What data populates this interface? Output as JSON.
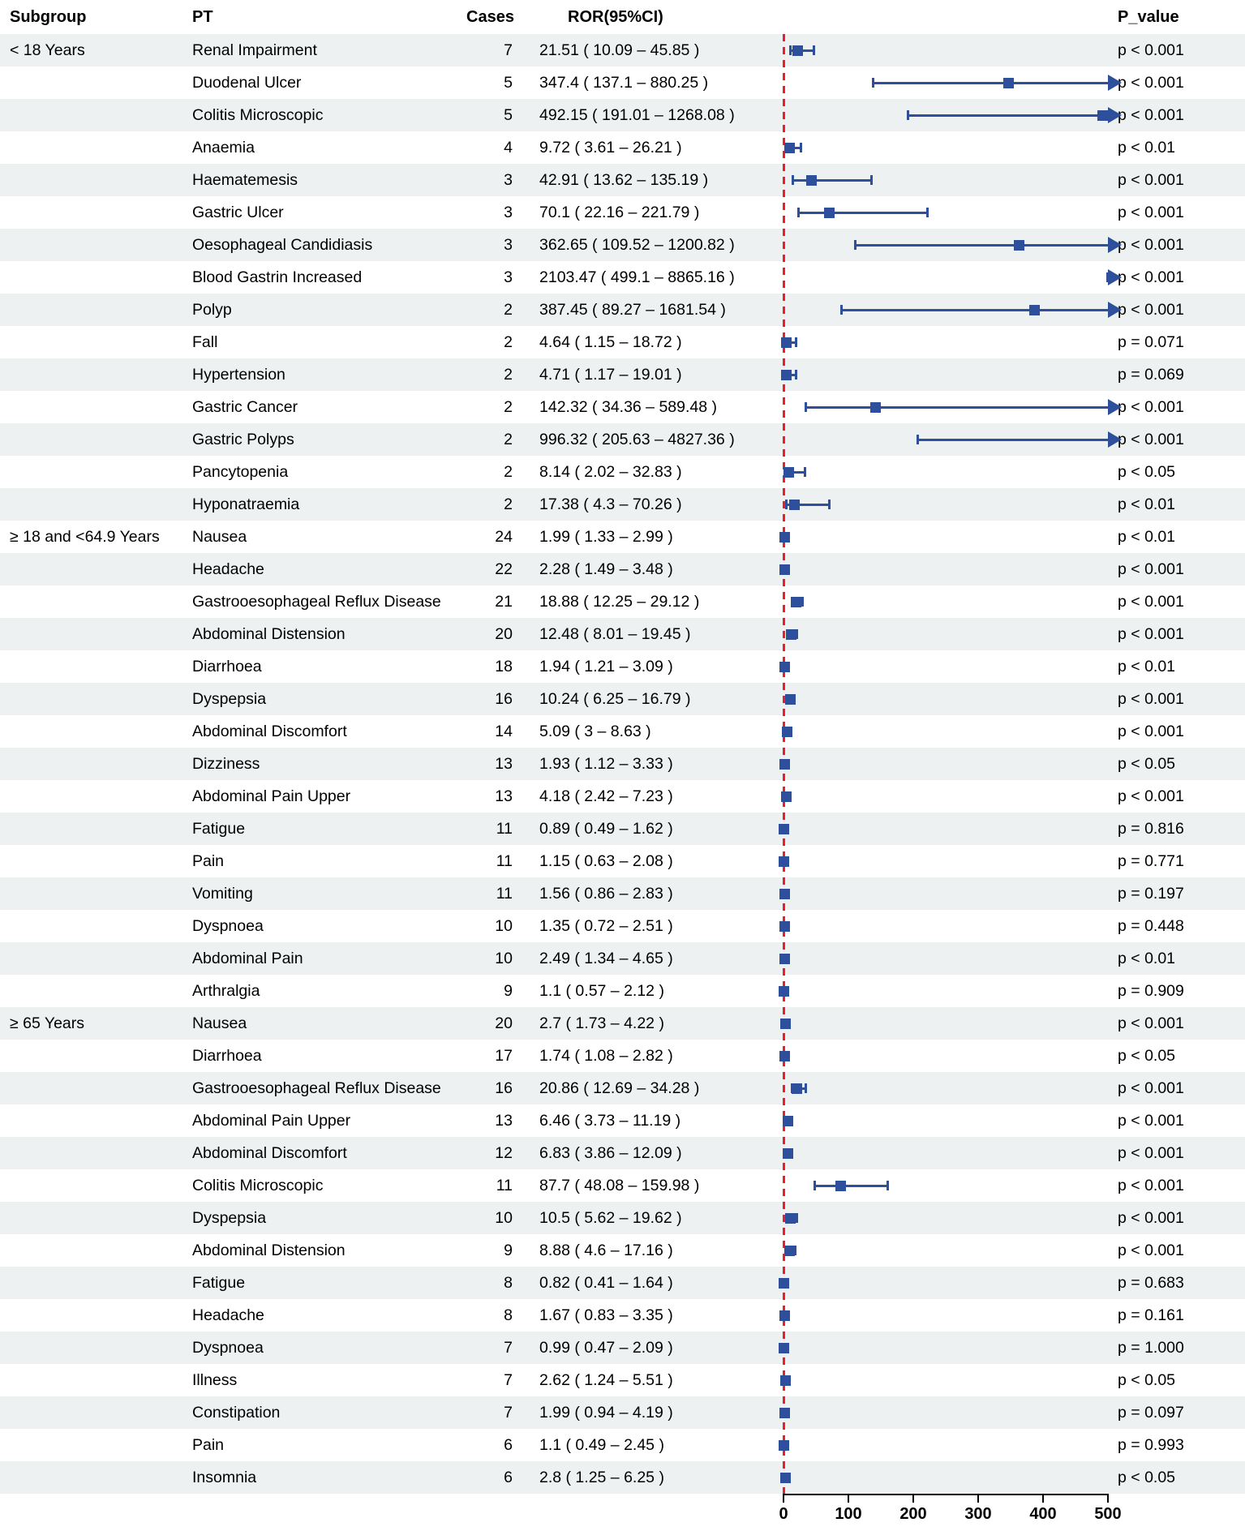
{
  "header": {
    "subgroup": "Subgroup",
    "pt": "PT",
    "cases": "Cases",
    "ror": "ROR(95%CI)",
    "p_value": "P_value"
  },
  "chart_data": {
    "type": "forest",
    "title": "",
    "xlabel": "",
    "axis": {
      "xlim": [
        0,
        500
      ],
      "ticks": [
        0,
        100,
        200,
        300,
        400,
        500
      ],
      "reference_line": 1,
      "grid": false
    },
    "colors": {
      "marker": "#2e4f9b",
      "reference_line": "#e8202a",
      "stripe": "#edf1f2",
      "text": "#000000"
    },
    "rows": [
      {
        "subgroup": "< 18 Years",
        "pt": "Renal Impairment",
        "cases": 7,
        "ror": 21.51,
        "lo": 10.09,
        "hi": 45.85,
        "ror_label": "21.51 ( 10.09 – 45.85 )",
        "p": "p < 0.001"
      },
      {
        "subgroup": "",
        "pt": "Duodenal Ulcer",
        "cases": 5,
        "ror": 347.4,
        "lo": 137.1,
        "hi": 880.25,
        "ror_label": "347.4 ( 137.1 – 880.25 )",
        "p": "p < 0.001"
      },
      {
        "subgroup": "",
        "pt": "Colitis Microscopic",
        "cases": 5,
        "ror": 492.15,
        "lo": 191.01,
        "hi": 1268.08,
        "ror_label": "492.15 ( 191.01 – 1268.08 )",
        "p": "p < 0.001"
      },
      {
        "subgroup": "",
        "pt": "Anaemia",
        "cases": 4,
        "ror": 9.72,
        "lo": 3.61,
        "hi": 26.21,
        "ror_label": "9.72 ( 3.61 – 26.21 )",
        "p": "p < 0.01"
      },
      {
        "subgroup": "",
        "pt": "Haematemesis",
        "cases": 3,
        "ror": 42.91,
        "lo": 13.62,
        "hi": 135.19,
        "ror_label": "42.91 ( 13.62 – 135.19 )",
        "p": "p < 0.001"
      },
      {
        "subgroup": "",
        "pt": "Gastric Ulcer",
        "cases": 3,
        "ror": 70.1,
        "lo": 22.16,
        "hi": 221.79,
        "ror_label": "70.1 ( 22.16 – 221.79 )",
        "p": "p < 0.001"
      },
      {
        "subgroup": "",
        "pt": "Oesophageal Candidiasis",
        "cases": 3,
        "ror": 362.65,
        "lo": 109.52,
        "hi": 1200.82,
        "ror_label": "362.65 ( 109.52 – 1200.82 )",
        "p": "p < 0.001"
      },
      {
        "subgroup": "",
        "pt": "Blood Gastrin Increased",
        "cases": 3,
        "ror": 2103.47,
        "lo": 499.1,
        "hi": 8865.16,
        "ror_label": "2103.47 ( 499.1 – 8865.16 )",
        "p": "p < 0.001"
      },
      {
        "subgroup": "",
        "pt": "Polyp",
        "cases": 2,
        "ror": 387.45,
        "lo": 89.27,
        "hi": 1681.54,
        "ror_label": "387.45 ( 89.27 – 1681.54 )",
        "p": "p < 0.001"
      },
      {
        "subgroup": "",
        "pt": "Fall",
        "cases": 2,
        "ror": 4.64,
        "lo": 1.15,
        "hi": 18.72,
        "ror_label": "4.64 ( 1.15 – 18.72 )",
        "p": "p = 0.071"
      },
      {
        "subgroup": "",
        "pt": "Hypertension",
        "cases": 2,
        "ror": 4.71,
        "lo": 1.17,
        "hi": 19.01,
        "ror_label": "4.71 ( 1.17 – 19.01 )",
        "p": "p = 0.069"
      },
      {
        "subgroup": "",
        "pt": "Gastric Cancer",
        "cases": 2,
        "ror": 142.32,
        "lo": 34.36,
        "hi": 589.48,
        "ror_label": "142.32 ( 34.36 – 589.48 )",
        "p": "p < 0.001"
      },
      {
        "subgroup": "",
        "pt": "Gastric Polyps",
        "cases": 2,
        "ror": 996.32,
        "lo": 205.63,
        "hi": 4827.36,
        "ror_label": "996.32 ( 205.63 – 4827.36 )",
        "p": "p < 0.001"
      },
      {
        "subgroup": "",
        "pt": "Pancytopenia",
        "cases": 2,
        "ror": 8.14,
        "lo": 2.02,
        "hi": 32.83,
        "ror_label": "8.14 ( 2.02 – 32.83 )",
        "p": "p < 0.05"
      },
      {
        "subgroup": "",
        "pt": "Hyponatraemia",
        "cases": 2,
        "ror": 17.38,
        "lo": 4.3,
        "hi": 70.26,
        "ror_label": "17.38 ( 4.3 – 70.26 )",
        "p": "p < 0.01"
      },
      {
        "subgroup": "≥ 18 and <64.9 Years",
        "pt": "Nausea",
        "cases": 24,
        "ror": 1.99,
        "lo": 1.33,
        "hi": 2.99,
        "ror_label": "1.99 ( 1.33 – 2.99 )",
        "p": "p < 0.01"
      },
      {
        "subgroup": "",
        "pt": "Headache",
        "cases": 22,
        "ror": 2.28,
        "lo": 1.49,
        "hi": 3.48,
        "ror_label": "2.28 ( 1.49 – 3.48 )",
        "p": "p < 0.001"
      },
      {
        "subgroup": "",
        "pt": "Gastrooesophageal Reflux Disease",
        "cases": 21,
        "ror": 18.88,
        "lo": 12.25,
        "hi": 29.12,
        "ror_label": "18.88 ( 12.25 – 29.12 )",
        "p": "p < 0.001"
      },
      {
        "subgroup": "",
        "pt": "Abdominal Distension",
        "cases": 20,
        "ror": 12.48,
        "lo": 8.01,
        "hi": 19.45,
        "ror_label": "12.48 ( 8.01 – 19.45 )",
        "p": "p < 0.001"
      },
      {
        "subgroup": "",
        "pt": "Diarrhoea",
        "cases": 18,
        "ror": 1.94,
        "lo": 1.21,
        "hi": 3.09,
        "ror_label": "1.94 ( 1.21 – 3.09 )",
        "p": "p < 0.01"
      },
      {
        "subgroup": "",
        "pt": "Dyspepsia",
        "cases": 16,
        "ror": 10.24,
        "lo": 6.25,
        "hi": 16.79,
        "ror_label": "10.24 ( 6.25 – 16.79 )",
        "p": "p < 0.001"
      },
      {
        "subgroup": "",
        "pt": "Abdominal Discomfort",
        "cases": 14,
        "ror": 5.09,
        "lo": 3,
        "hi": 8.63,
        "ror_label": "5.09 ( 3 – 8.63 )",
        "p": "p < 0.001"
      },
      {
        "subgroup": "",
        "pt": "Dizziness",
        "cases": 13,
        "ror": 1.93,
        "lo": 1.12,
        "hi": 3.33,
        "ror_label": "1.93 ( 1.12 – 3.33 )",
        "p": "p < 0.05"
      },
      {
        "subgroup": "",
        "pt": "Abdominal Pain Upper",
        "cases": 13,
        "ror": 4.18,
        "lo": 2.42,
        "hi": 7.23,
        "ror_label": "4.18 ( 2.42 – 7.23 )",
        "p": "p < 0.001"
      },
      {
        "subgroup": "",
        "pt": "Fatigue",
        "cases": 11,
        "ror": 0.89,
        "lo": 0.49,
        "hi": 1.62,
        "ror_label": "0.89 ( 0.49 – 1.62 )",
        "p": "p = 0.816"
      },
      {
        "subgroup": "",
        "pt": "Pain",
        "cases": 11,
        "ror": 1.15,
        "lo": 0.63,
        "hi": 2.08,
        "ror_label": "1.15 ( 0.63 – 2.08 )",
        "p": "p = 0.771"
      },
      {
        "subgroup": "",
        "pt": "Vomiting",
        "cases": 11,
        "ror": 1.56,
        "lo": 0.86,
        "hi": 2.83,
        "ror_label": "1.56 ( 0.86 – 2.83 )",
        "p": "p = 0.197"
      },
      {
        "subgroup": "",
        "pt": "Dyspnoea",
        "cases": 10,
        "ror": 1.35,
        "lo": 0.72,
        "hi": 2.51,
        "ror_label": "1.35 ( 0.72 – 2.51 )",
        "p": "p = 0.448"
      },
      {
        "subgroup": "",
        "pt": "Abdominal Pain",
        "cases": 10,
        "ror": 2.49,
        "lo": 1.34,
        "hi": 4.65,
        "ror_label": "2.49 ( 1.34 – 4.65 )",
        "p": "p < 0.01"
      },
      {
        "subgroup": "",
        "pt": "Arthralgia",
        "cases": 9,
        "ror": 1.1,
        "lo": 0.57,
        "hi": 2.12,
        "ror_label": "1.1 ( 0.57 – 2.12 )",
        "p": "p = 0.909"
      },
      {
        "subgroup": "≥ 65 Years",
        "pt": "Nausea",
        "cases": 20,
        "ror": 2.7,
        "lo": 1.73,
        "hi": 4.22,
        "ror_label": "2.7 ( 1.73 – 4.22 )",
        "p": "p < 0.001"
      },
      {
        "subgroup": "",
        "pt": "Diarrhoea",
        "cases": 17,
        "ror": 1.74,
        "lo": 1.08,
        "hi": 2.82,
        "ror_label": "1.74 ( 1.08 – 2.82 )",
        "p": "p < 0.05"
      },
      {
        "subgroup": "",
        "pt": "Gastrooesophageal Reflux Disease",
        "cases": 16,
        "ror": 20.86,
        "lo": 12.69,
        "hi": 34.28,
        "ror_label": "20.86 ( 12.69 – 34.28 )",
        "p": "p < 0.001"
      },
      {
        "subgroup": "",
        "pt": "Abdominal Pain Upper",
        "cases": 13,
        "ror": 6.46,
        "lo": 3.73,
        "hi": 11.19,
        "ror_label": "6.46 ( 3.73 – 11.19 )",
        "p": "p < 0.001"
      },
      {
        "subgroup": "",
        "pt": "Abdominal Discomfort",
        "cases": 12,
        "ror": 6.83,
        "lo": 3.86,
        "hi": 12.09,
        "ror_label": "6.83 ( 3.86 – 12.09 )",
        "p": "p < 0.001"
      },
      {
        "subgroup": "",
        "pt": "Colitis Microscopic",
        "cases": 11,
        "ror": 87.7,
        "lo": 48.08,
        "hi": 159.98,
        "ror_label": "87.7 ( 48.08 – 159.98 )",
        "p": "p < 0.001"
      },
      {
        "subgroup": "",
        "pt": "Dyspepsia",
        "cases": 10,
        "ror": 10.5,
        "lo": 5.62,
        "hi": 19.62,
        "ror_label": "10.5 ( 5.62 – 19.62 )",
        "p": "p < 0.001"
      },
      {
        "subgroup": "",
        "pt": "Abdominal Distension",
        "cases": 9,
        "ror": 8.88,
        "lo": 4.6,
        "hi": 17.16,
        "ror_label": "8.88 ( 4.6 – 17.16 )",
        "p": "p < 0.001"
      },
      {
        "subgroup": "",
        "pt": "Fatigue",
        "cases": 8,
        "ror": 0.82,
        "lo": 0.41,
        "hi": 1.64,
        "ror_label": "0.82 ( 0.41 – 1.64 )",
        "p": "p = 0.683"
      },
      {
        "subgroup": "",
        "pt": "Headache",
        "cases": 8,
        "ror": 1.67,
        "lo": 0.83,
        "hi": 3.35,
        "ror_label": "1.67 ( 0.83 – 3.35 )",
        "p": "p = 0.161"
      },
      {
        "subgroup": "",
        "pt": "Dyspnoea",
        "cases": 7,
        "ror": 0.99,
        "lo": 0.47,
        "hi": 2.09,
        "ror_label": "0.99 ( 0.47 – 2.09 )",
        "p": "p = 1.000"
      },
      {
        "subgroup": "",
        "pt": "Illness",
        "cases": 7,
        "ror": 2.62,
        "lo": 1.24,
        "hi": 5.51,
        "ror_label": "2.62 ( 1.24 – 5.51 )",
        "p": "p < 0.05"
      },
      {
        "subgroup": "",
        "pt": "Constipation",
        "cases": 7,
        "ror": 1.99,
        "lo": 0.94,
        "hi": 4.19,
        "ror_label": "1.99 ( 0.94 – 4.19 )",
        "p": "p = 0.097"
      },
      {
        "subgroup": "",
        "pt": "Pain",
        "cases": 6,
        "ror": 1.1,
        "lo": 0.49,
        "hi": 2.45,
        "ror_label": "1.1 ( 0.49 – 2.45 )",
        "p": "p = 0.993"
      },
      {
        "subgroup": "",
        "pt": "Insomnia",
        "cases": 6,
        "ror": 2.8,
        "lo": 1.25,
        "hi": 6.25,
        "ror_label": "2.8 ( 1.25 – 6.25 )",
        "p": "p < 0.05"
      }
    ]
  }
}
